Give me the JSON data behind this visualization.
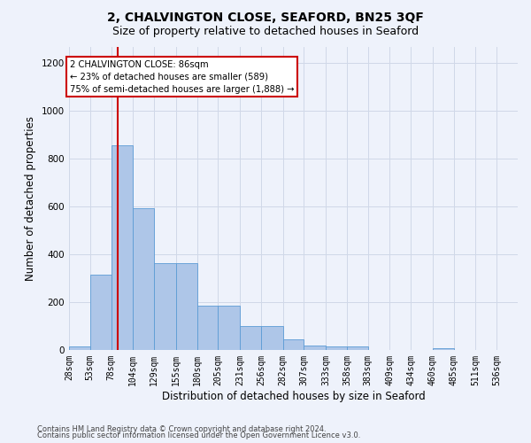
{
  "title": "2, CHALVINGTON CLOSE, SEAFORD, BN25 3QF",
  "subtitle": "Size of property relative to detached houses in Seaford",
  "xlabel": "Distribution of detached houses by size in Seaford",
  "ylabel": "Number of detached properties",
  "footer_line1": "Contains HM Land Registry data © Crown copyright and database right 2024.",
  "footer_line2": "Contains public sector information licensed under the Open Government Licence v3.0.",
  "bar_labels": [
    "28sqm",
    "53sqm",
    "78sqm",
    "104sqm",
    "129sqm",
    "155sqm",
    "180sqm",
    "205sqm",
    "231sqm",
    "256sqm",
    "282sqm",
    "307sqm",
    "333sqm",
    "358sqm",
    "383sqm",
    "409sqm",
    "434sqm",
    "460sqm",
    "485sqm",
    "511sqm",
    "536sqm"
  ],
  "bar_values": [
    15,
    315,
    855,
    595,
    365,
    365,
    185,
    185,
    100,
    100,
    45,
    20,
    15,
    15,
    0,
    0,
    0,
    8,
    0,
    0,
    0
  ],
  "bin_edges": [
    28,
    53,
    78,
    104,
    129,
    155,
    180,
    205,
    231,
    256,
    282,
    307,
    333,
    358,
    383,
    409,
    434,
    460,
    485,
    511,
    536,
    561
  ],
  "bar_color": "#aec6e8",
  "bar_edge_color": "#5b9bd5",
  "property_value": 86,
  "property_line_color": "#cc0000",
  "annotation_text": "2 CHALVINGTON CLOSE: 86sqm\n← 23% of detached houses are smaller (589)\n75% of semi-detached houses are larger (1,888) →",
  "annotation_box_color": "#ffffff",
  "annotation_box_edge_color": "#cc0000",
  "ylim": [
    0,
    1270
  ],
  "yticks": [
    0,
    200,
    400,
    600,
    800,
    1000,
    1200
  ],
  "grid_color": "#d0d8e8",
  "background_color": "#eef2fb",
  "title_fontsize": 10,
  "subtitle_fontsize": 9,
  "axis_label_fontsize": 8.5,
  "tick_fontsize": 7
}
